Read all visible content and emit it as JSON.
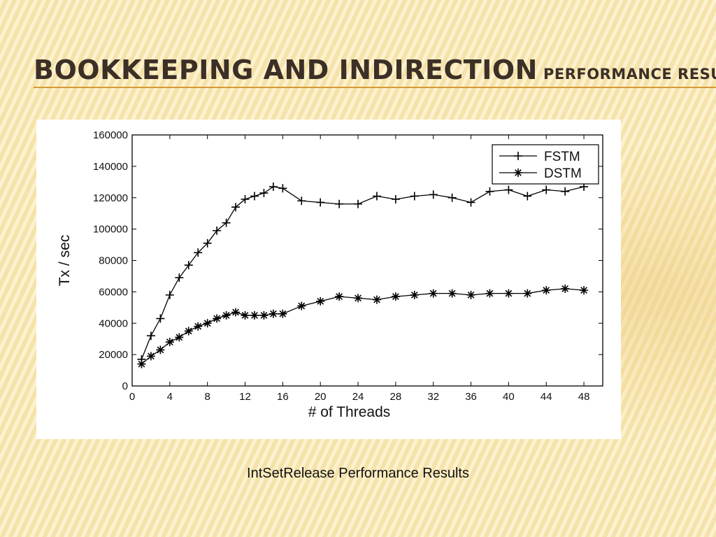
{
  "slide": {
    "title": "Bookkeeping and Indirection",
    "subtitle": "Performance Results",
    "caption": "IntSetRelease Performance Results",
    "colors": {
      "background": "#fcebb6",
      "title": "#3b2f26",
      "rule": "#d69b34"
    }
  },
  "chart_data": {
    "type": "line",
    "title": "",
    "xlabel": "# of Threads",
    "ylabel": "Tx / sec",
    "xlim": [
      0,
      50
    ],
    "ylim": [
      0,
      160000
    ],
    "xticks": [
      0,
      4,
      8,
      12,
      16,
      20,
      24,
      28,
      32,
      36,
      40,
      44,
      48
    ],
    "yticks": [
      0,
      20000,
      40000,
      60000,
      80000,
      100000,
      120000,
      140000,
      160000
    ],
    "grid": false,
    "legend": "top-right",
    "series": [
      {
        "name": "FSTM",
        "marker": "plus",
        "x": [
          1,
          2,
          3,
          4,
          5,
          6,
          7,
          8,
          9,
          10,
          11,
          12,
          13,
          14,
          15,
          16,
          18,
          20,
          22,
          24,
          26,
          28,
          30,
          32,
          34,
          36,
          38,
          40,
          42,
          44,
          46,
          48
        ],
        "y": [
          17000,
          32000,
          43000,
          58000,
          69000,
          77000,
          85000,
          91000,
          99000,
          104000,
          114000,
          119000,
          121000,
          123000,
          127000,
          126000,
          118000,
          117000,
          116000,
          116000,
          121000,
          119000,
          121000,
          122000,
          120000,
          117000,
          124000,
          125000,
          121000,
          125000,
          124000,
          127000
        ]
      },
      {
        "name": "DSTM",
        "marker": "star",
        "x": [
          1,
          2,
          3,
          4,
          5,
          6,
          7,
          8,
          9,
          10,
          11,
          12,
          13,
          14,
          15,
          16,
          18,
          20,
          22,
          24,
          26,
          28,
          30,
          32,
          34,
          36,
          38,
          40,
          42,
          44,
          46,
          48
        ],
        "y": [
          14000,
          19000,
          23000,
          28000,
          31000,
          35000,
          38000,
          40000,
          43000,
          45000,
          47000,
          45000,
          45000,
          45000,
          46000,
          46000,
          51000,
          54000,
          57000,
          56000,
          55000,
          57000,
          58000,
          59000,
          59000,
          58000,
          59000,
          59000,
          59000,
          61000,
          62000,
          61000
        ]
      }
    ]
  }
}
